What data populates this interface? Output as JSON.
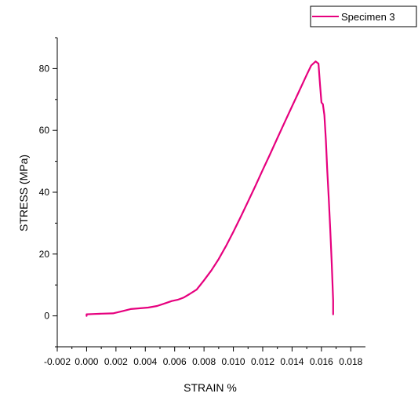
{
  "chart_data": {
    "type": "line",
    "title": "",
    "xlabel": "STRAIN %",
    "ylabel": "STRESS (MPa)",
    "xlim": [
      -0.002,
      0.019
    ],
    "ylim": [
      -10,
      90
    ],
    "x_ticks": [
      "-0.002",
      "0.000",
      "0.002",
      "0.004",
      "0.006",
      "0.008",
      "0.010",
      "0.012",
      "0.014",
      "0.016",
      "0.018"
    ],
    "y_ticks": [
      "0",
      "20",
      "40",
      "60",
      "80"
    ],
    "grid": false,
    "legend_position": "top-right",
    "series": [
      {
        "name": "Specimen 3",
        "color": "#e6007e",
        "x": [
          0.0,
          0.0,
          0.0005,
          0.001,
          0.0018,
          0.0025,
          0.003,
          0.0035,
          0.0042,
          0.0048,
          0.0052,
          0.0058,
          0.0062,
          0.0066,
          0.007,
          0.0075,
          0.008,
          0.0085,
          0.009,
          0.0095,
          0.01,
          0.0105,
          0.011,
          0.0115,
          0.012,
          0.0125,
          0.013,
          0.0135,
          0.014,
          0.0145,
          0.015,
          0.0153,
          0.0156,
          0.0158,
          0.0159,
          0.016,
          0.0161,
          0.0162,
          0.0163,
          0.0164,
          0.0165,
          0.0166,
          0.0167,
          0.0168,
          0.0168
        ],
        "y": [
          0.0,
          0.5,
          0.6,
          0.7,
          0.8,
          1.6,
          2.2,
          2.4,
          2.7,
          3.2,
          3.8,
          4.8,
          5.2,
          5.9,
          7.0,
          8.5,
          11.5,
          14.7,
          18.4,
          22.6,
          27.2,
          32.0,
          37.0,
          42.0,
          47.2,
          52.3,
          57.5,
          62.7,
          67.8,
          72.9,
          78.0,
          81.0,
          82.3,
          81.6,
          75.0,
          69.0,
          68.5,
          65.0,
          57.0,
          47.0,
          38.0,
          28.0,
          17.0,
          5.0,
          0.5
        ]
      }
    ]
  }
}
